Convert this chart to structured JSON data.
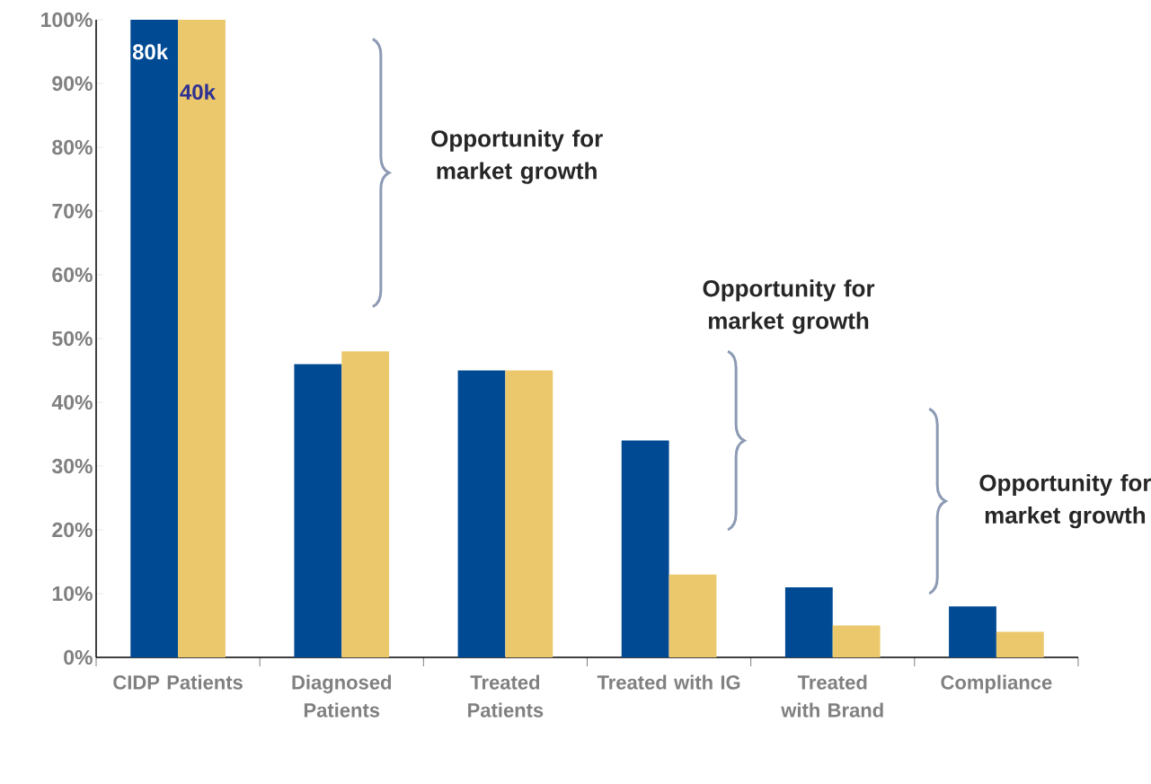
{
  "chart_data": {
    "type": "bar",
    "categories": [
      "CIDP Patients",
      "Diagnosed Patients",
      "Treated Patients",
      "Treated with IG",
      "Treated with Brand",
      "Compliance"
    ],
    "series": [
      {
        "color": "#004a94",
        "values": [
          100,
          46,
          45,
          34,
          11,
          8
        ]
      },
      {
        "color": "#ecc86c",
        "values": [
          100,
          48,
          45,
          13,
          5,
          4
        ]
      }
    ],
    "ylim": [
      0,
      100
    ],
    "yticks": [
      {
        "value": 0,
        "label": "0%"
      },
      {
        "value": 10,
        "label": "10%"
      },
      {
        "value": 20,
        "label": "20%"
      },
      {
        "value": 30,
        "label": "30%"
      },
      {
        "value": 40,
        "label": "40%"
      },
      {
        "value": 50,
        "label": "50%"
      },
      {
        "value": 60,
        "label": "60%"
      },
      {
        "value": 70,
        "label": "70%"
      },
      {
        "value": 80,
        "label": "80%"
      },
      {
        "value": 90,
        "label": "90%"
      },
      {
        "value": 100,
        "label": "100%"
      }
    ],
    "annotations": [
      "80k",
      "40k",
      "Opportunity for market growth",
      "Opportunity for market growth",
      "Opportunity for market growth"
    ],
    "grid": false
  }
}
